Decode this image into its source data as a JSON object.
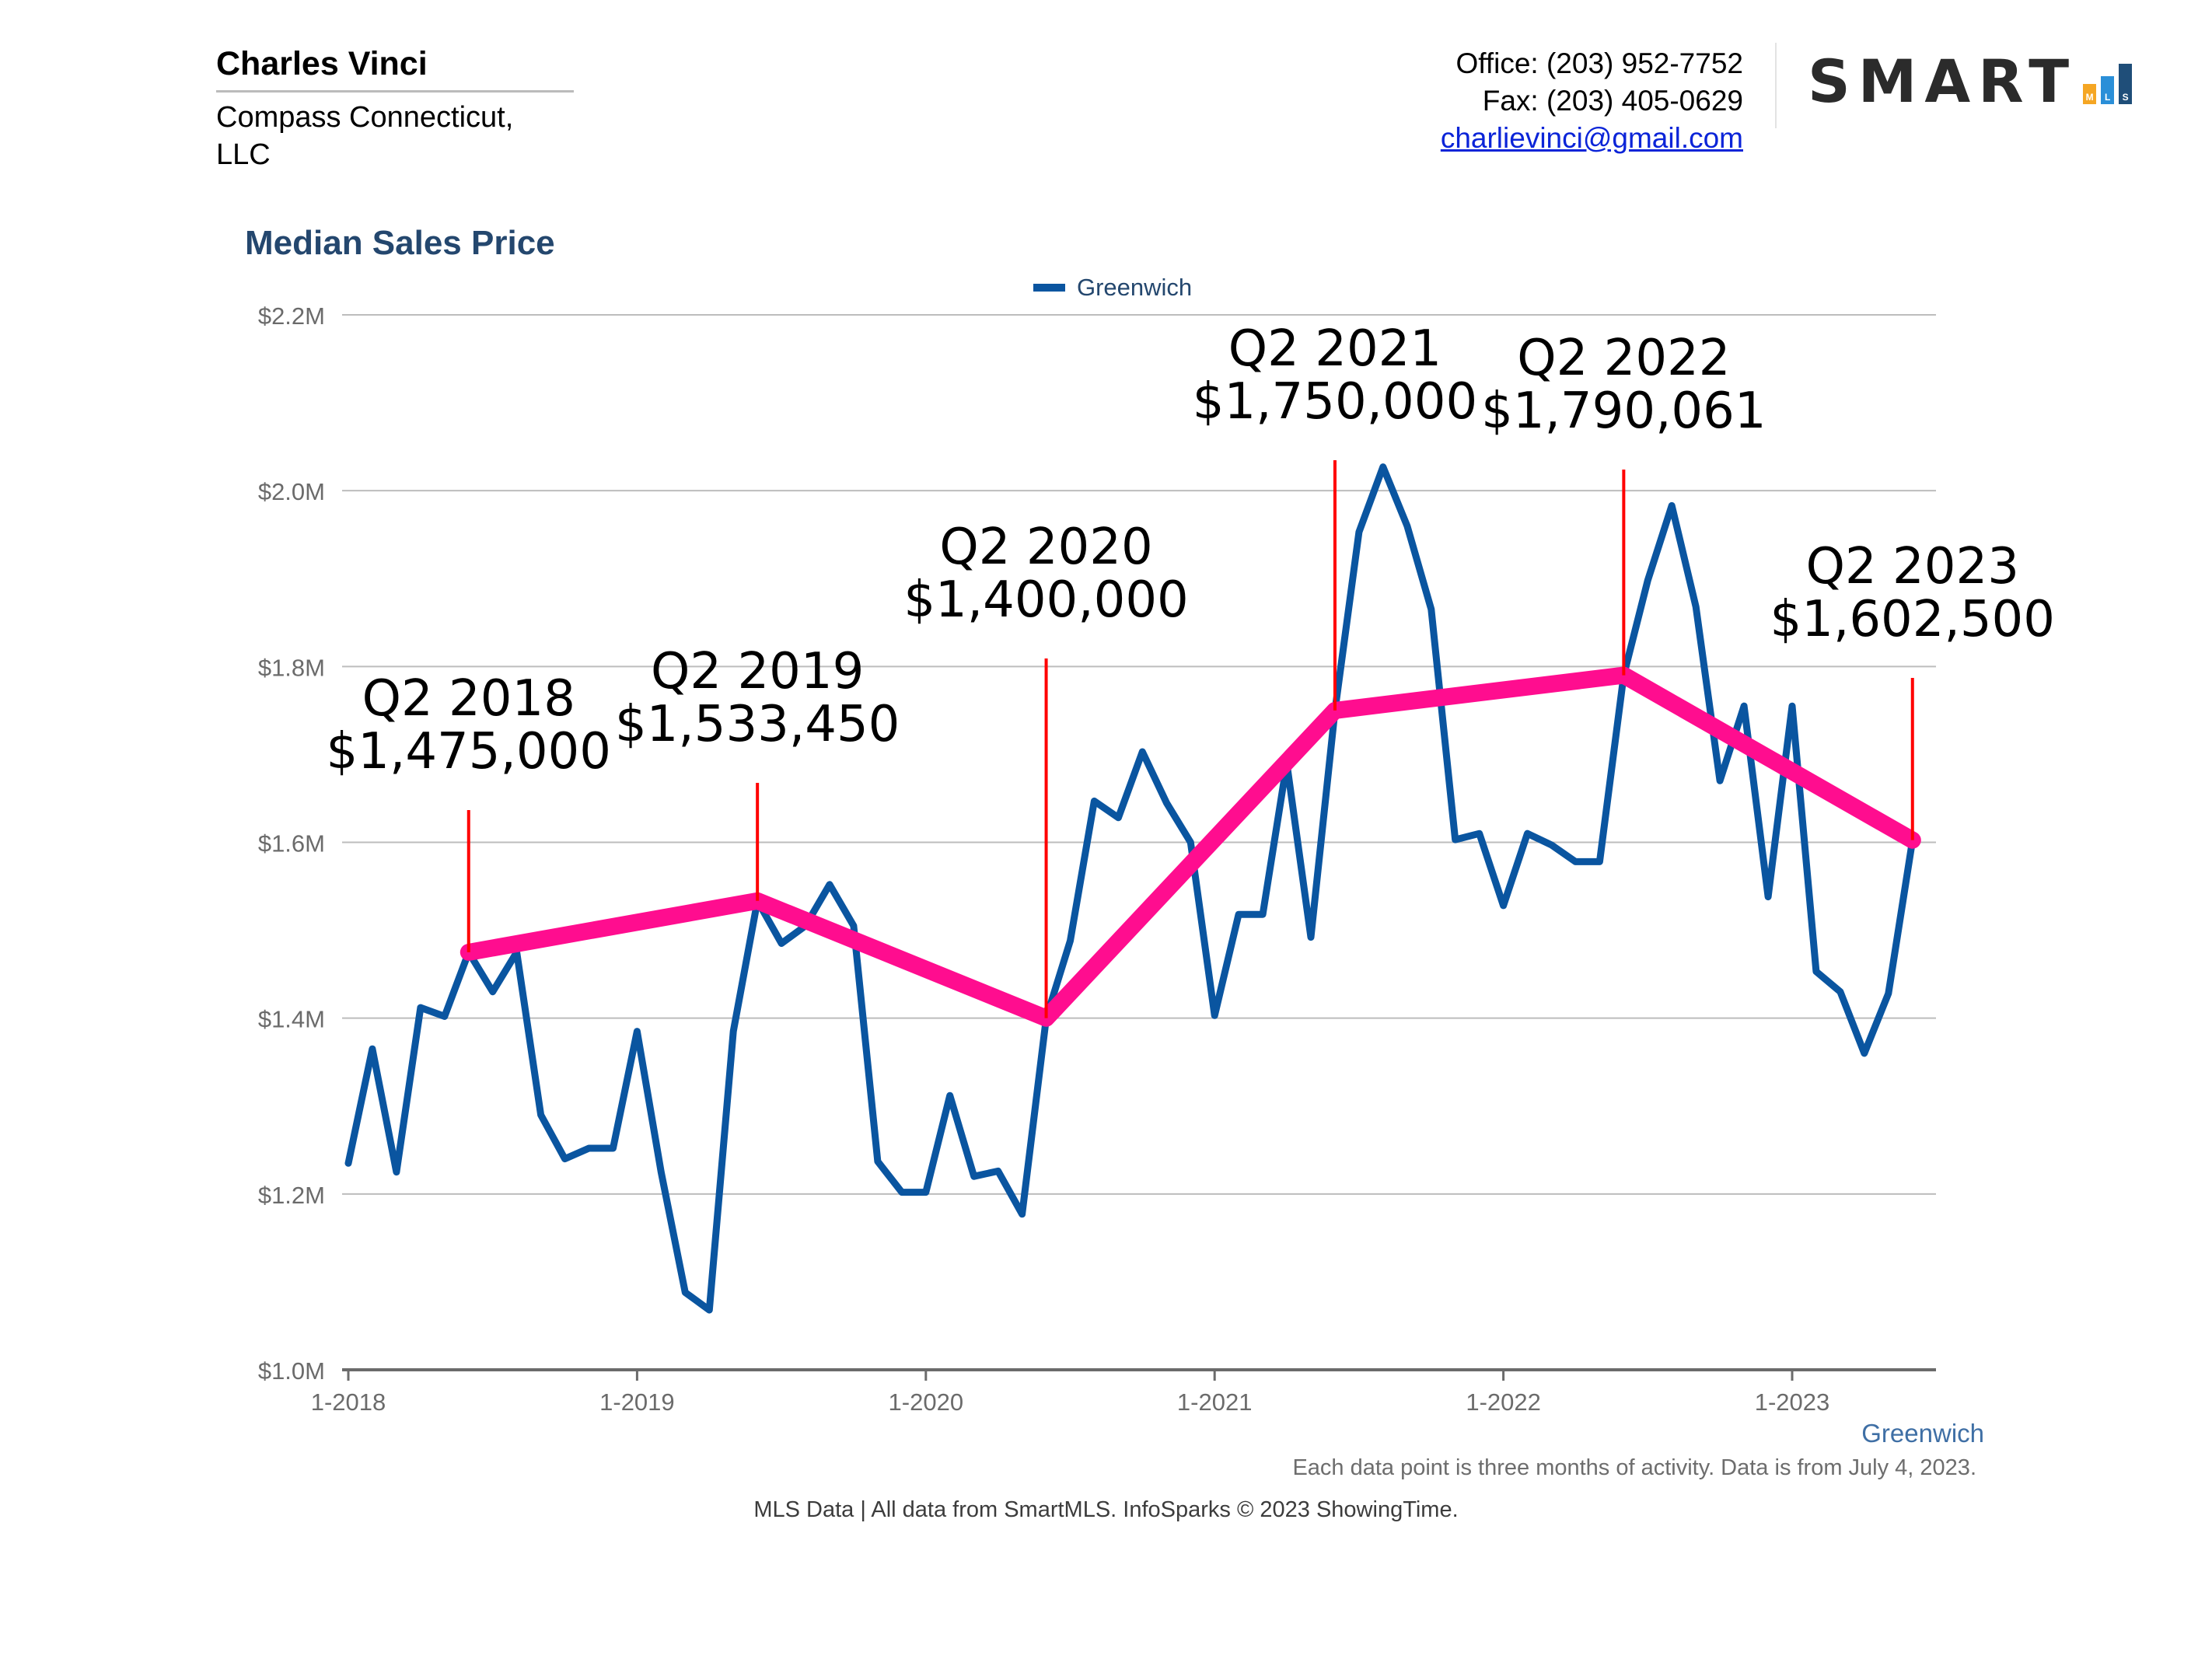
{
  "agent": {
    "name": "Charles Vinci",
    "company": "Compass Connecticut, LLC"
  },
  "contact": {
    "office": "Office: (203) 952-7752",
    "fax": "Fax: (203) 405-0629",
    "email": "charlievinci@gmail.com"
  },
  "logo": {
    "word": "SMART",
    "letters": [
      "M",
      "L",
      "S"
    ]
  },
  "colors": {
    "series": "#0a55a0",
    "annotation_line": "#ff0000",
    "trend": "#ff0d8f",
    "title": "#24476e",
    "grid": "#bdbdbd",
    "axis": "#6b6b6b",
    "logo_bars": [
      "#f5a623",
      "#2a8fd8",
      "#1f4e79"
    ]
  },
  "footnote": "Each data point is three months of activity. Data is from July 4, 2023.",
  "source": "MLS Data | All data from SmartMLS. InfoSparks © 2023 ShowingTime.",
  "chart_data": {
    "type": "line",
    "title": "Median Sales Price",
    "legend": [
      "Greenwich"
    ],
    "legend_position": "top-center",
    "series_label": "Greenwich",
    "y_ticks": [
      "$1.0M",
      "$1.2M",
      "$1.4M",
      "$1.6M",
      "$1.8M",
      "$2.0M",
      "$2.2M"
    ],
    "x_ticks": [
      "1-2018",
      "1-2019",
      "1-2020",
      "1-2021",
      "1-2022",
      "1-2023"
    ],
    "ylim": [
      1000000,
      2200000
    ],
    "xlim": [
      2018.0,
      2023.5
    ],
    "grid": true,
    "series": [
      {
        "name": "Greenwich",
        "x": [
          2018.0,
          2018.0833,
          2018.1667,
          2018.25,
          2018.3333,
          2018.4167,
          2018.5,
          2018.5833,
          2018.6667,
          2018.75,
          2018.8333,
          2018.9167,
          2019.0,
          2019.0833,
          2019.1667,
          2019.25,
          2019.3333,
          2019.4167,
          2019.5,
          2019.5833,
          2019.6667,
          2019.75,
          2019.8333,
          2019.9167,
          2020.0,
          2020.0833,
          2020.1667,
          2020.25,
          2020.3333,
          2020.4167,
          2020.5,
          2020.5833,
          2020.6667,
          2020.75,
          2020.8333,
          2020.9167,
          2021.0,
          2021.0833,
          2021.1667,
          2021.25,
          2021.3333,
          2021.4167,
          2021.5,
          2021.5833,
          2021.6667,
          2021.75,
          2021.8333,
          2021.9167,
          2022.0,
          2022.0833,
          2022.1667,
          2022.25,
          2022.3333,
          2022.4167,
          2022.5,
          2022.5833,
          2022.6667,
          2022.75,
          2022.8333,
          2022.9167,
          2023.0,
          2023.0833,
          2023.1667,
          2023.25,
          2023.3333,
          2023.4167
        ],
        "values": [
          1235000,
          1365000,
          1225000,
          1412000,
          1402000,
          1475000,
          1430000,
          1475000,
          1290000,
          1240000,
          1252000,
          1252000,
          1385000,
          1225000,
          1088000,
          1068000,
          1385000,
          1533450,
          1485000,
          1505000,
          1552000,
          1505000,
          1237000,
          1202000,
          1202000,
          1312000,
          1220000,
          1226000,
          1177000,
          1400000,
          1488000,
          1647000,
          1628000,
          1703000,
          1645000,
          1600000,
          1403000,
          1518000,
          1518000,
          1690000,
          1492000,
          1750000,
          1953000,
          2027000,
          1960000,
          1865000,
          1603000,
          1610000,
          1528000,
          1610000,
          1597000,
          1578000,
          1578000,
          1790061,
          1898000,
          1983000,
          1868000,
          1670000,
          1755000,
          1538000,
          1755000,
          1453000,
          1430000,
          1360000,
          1428000,
          1602500
        ]
      }
    ],
    "trend": {
      "x": [
        2018.4167,
        2019.4167,
        2020.4167,
        2021.4167,
        2022.4167,
        2023.4167
      ],
      "values": [
        1475000,
        1533450,
        1400000,
        1750000,
        1790061,
        1602500
      ]
    },
    "annotations": [
      {
        "x": 2018.4167,
        "quarter": "Q2 2018",
        "price": "$1,475,000"
      },
      {
        "x": 2019.4167,
        "quarter": "Q2 2019",
        "price": "$1,533,450"
      },
      {
        "x": 2020.4167,
        "quarter": "Q2 2020",
        "price": "$1,400,000"
      },
      {
        "x": 2021.4167,
        "quarter": "Q2 2021",
        "price": "$1,750,000"
      },
      {
        "x": 2022.4167,
        "quarter": "Q2 2022",
        "price": "$1,790,061"
      },
      {
        "x": 2023.4167,
        "quarter": "Q2 2023",
        "price": "$1,602,500"
      }
    ]
  }
}
